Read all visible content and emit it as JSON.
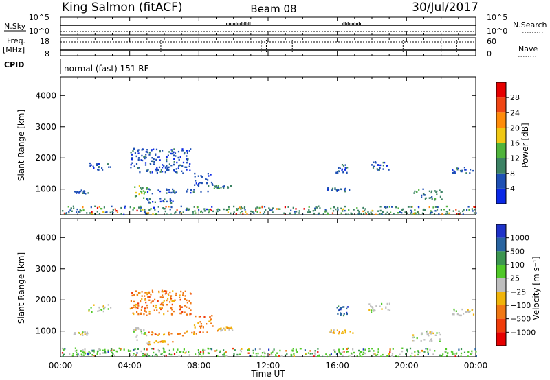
{
  "header": {
    "site": "King Salmon (fitACF)",
    "beam": "Beam 08",
    "date": "30/Jul/2017"
  },
  "strip_panels": {
    "nsky_label": "N.Sky",
    "nsearch_label": "N.Search",
    "freq_label_line1": "Freq.",
    "freq_label_line2": "[MHz]",
    "nave_label": "Nave",
    "cpid_label": "CPID",
    "cpid_value": "normal (fast) 151 RF",
    "nsky_left_ticks": [
      "10^5",
      "10^0"
    ],
    "nsearch_right_ticks": [
      "10^5",
      "10^0"
    ],
    "freq_left_ticks": [
      "18",
      "8"
    ],
    "nave_right_ticks": [
      "60",
      "0"
    ]
  },
  "x_axis": {
    "label": "Time UT",
    "ticks": [
      "00:00",
      "04:00",
      "08:00",
      "12:00",
      "16:00",
      "20:00",
      "00:00"
    ]
  },
  "chart_data": [
    {
      "type": "heatmap",
      "panel": "power",
      "xlabel": "Time UT",
      "ylabel": "Slant Range [km]",
      "ylim": [
        180,
        4600
      ],
      "xlim_hours": [
        0,
        24
      ],
      "y_ticks": [
        "1000",
        "2000",
        "3000",
        "4000"
      ],
      "colorbar": {
        "label": "Power [dB]",
        "ticks": [
          "4",
          "8",
          "12",
          "16",
          "20",
          "24",
          "28"
        ],
        "colors": [
          "#0a28e6",
          "#1e50b4",
          "#3c8264",
          "#50b43c",
          "#f0c814",
          "#ff8c0a",
          "#f04614",
          "#e60000"
        ]
      },
      "echo_regions": [
        {
          "t_start": 0.6,
          "t_end": 1.6,
          "r_start": 850,
          "r_end": 980,
          "level": 1
        },
        {
          "t_start": 1.6,
          "t_end": 2.9,
          "r_start": 1600,
          "r_end": 1850,
          "level": 1
        },
        {
          "t_start": 4.2,
          "t_end": 5.0,
          "r_start": 700,
          "r_end": 1100,
          "level": 3
        },
        {
          "t_start": 4.9,
          "t_end": 6.5,
          "r_start": 550,
          "r_end": 700,
          "level": 1
        },
        {
          "t_start": 5.0,
          "t_end": 8.5,
          "r_start": 850,
          "r_end": 1000,
          "level": 1
        },
        {
          "t_start": 7.7,
          "t_end": 8.8,
          "r_start": 1100,
          "r_end": 1500,
          "level": 1
        },
        {
          "t_start": 8.8,
          "t_end": 9.9,
          "r_start": 1000,
          "r_end": 1120,
          "level": 2
        },
        {
          "t_start": 4.0,
          "t_end": 7.5,
          "r_start": 1500,
          "r_end": 2300,
          "level": 1
        },
        {
          "t_start": 15.9,
          "t_end": 16.6,
          "r_start": 1500,
          "r_end": 1800,
          "level": 1
        },
        {
          "t_start": 15.4,
          "t_end": 16.9,
          "r_start": 920,
          "r_end": 1050,
          "level": 1
        },
        {
          "t_start": 17.8,
          "t_end": 19.0,
          "r_start": 1600,
          "r_end": 1900,
          "level": 1
        },
        {
          "t_start": 20.3,
          "t_end": 22.0,
          "r_start": 650,
          "r_end": 1000,
          "level": 2
        },
        {
          "t_start": 22.6,
          "t_end": 24.0,
          "r_start": 1500,
          "r_end": 1700,
          "level": 1
        },
        {
          "t_start": 0.0,
          "t_end": 24.0,
          "r_start": 180,
          "r_end": 450,
          "level": 2
        }
      ]
    },
    {
      "type": "heatmap",
      "panel": "velocity",
      "xlabel": "Time UT",
      "ylabel": "Slant Range [km]",
      "ylim": [
        180,
        4600
      ],
      "xlim_hours": [
        0,
        24
      ],
      "y_ticks": [
        "1000",
        "2000",
        "3000",
        "4000"
      ],
      "colorbar": {
        "label": "Velocity [m s⁻¹]",
        "ticks": [
          "1000",
          "500",
          "100",
          "25",
          "−25",
          "−100",
          "−500",
          "−1000"
        ],
        "colors": [
          "#1e32c8",
          "#2864a0",
          "#3c9650",
          "#50c828",
          "#bebebe",
          "#f0b40a",
          "#f07814",
          "#f03c0a",
          "#e60000"
        ]
      },
      "echo_regions": [
        {
          "t_start": 0.6,
          "t_end": 1.6,
          "r_start": 850,
          "r_end": 980,
          "level": 4
        },
        {
          "t_start": 1.6,
          "t_end": 2.9,
          "r_start": 1600,
          "r_end": 1850,
          "level": 4
        },
        {
          "t_start": 4.2,
          "t_end": 5.0,
          "r_start": 700,
          "r_end": 1100,
          "level": 4
        },
        {
          "t_start": 4.9,
          "t_end": 6.5,
          "r_start": 550,
          "r_end": 700,
          "level": 5
        },
        {
          "t_start": 5.0,
          "t_end": 8.5,
          "r_start": 850,
          "r_end": 1000,
          "level": 6
        },
        {
          "t_start": 7.7,
          "t_end": 8.8,
          "r_start": 1100,
          "r_end": 1500,
          "level": 6
        },
        {
          "t_start": 8.8,
          "t_end": 9.9,
          "r_start": 1000,
          "r_end": 1120,
          "level": 5
        },
        {
          "t_start": 4.0,
          "t_end": 7.5,
          "r_start": 1500,
          "r_end": 2300,
          "level": 6
        },
        {
          "t_start": 15.9,
          "t_end": 16.6,
          "r_start": 1500,
          "r_end": 1800,
          "level": 1
        },
        {
          "t_start": 15.4,
          "t_end": 16.9,
          "r_start": 920,
          "r_end": 1050,
          "level": 5
        },
        {
          "t_start": 17.8,
          "t_end": 19.0,
          "r_start": 1600,
          "r_end": 1900,
          "level": 4
        },
        {
          "t_start": 20.3,
          "t_end": 22.0,
          "r_start": 650,
          "r_end": 1000,
          "level": 4
        },
        {
          "t_start": 22.6,
          "t_end": 24.0,
          "r_start": 1500,
          "r_end": 1700,
          "level": 4
        },
        {
          "t_start": 0.0,
          "t_end": 24.0,
          "r_start": 180,
          "r_end": 450,
          "level": 3
        }
      ]
    }
  ]
}
